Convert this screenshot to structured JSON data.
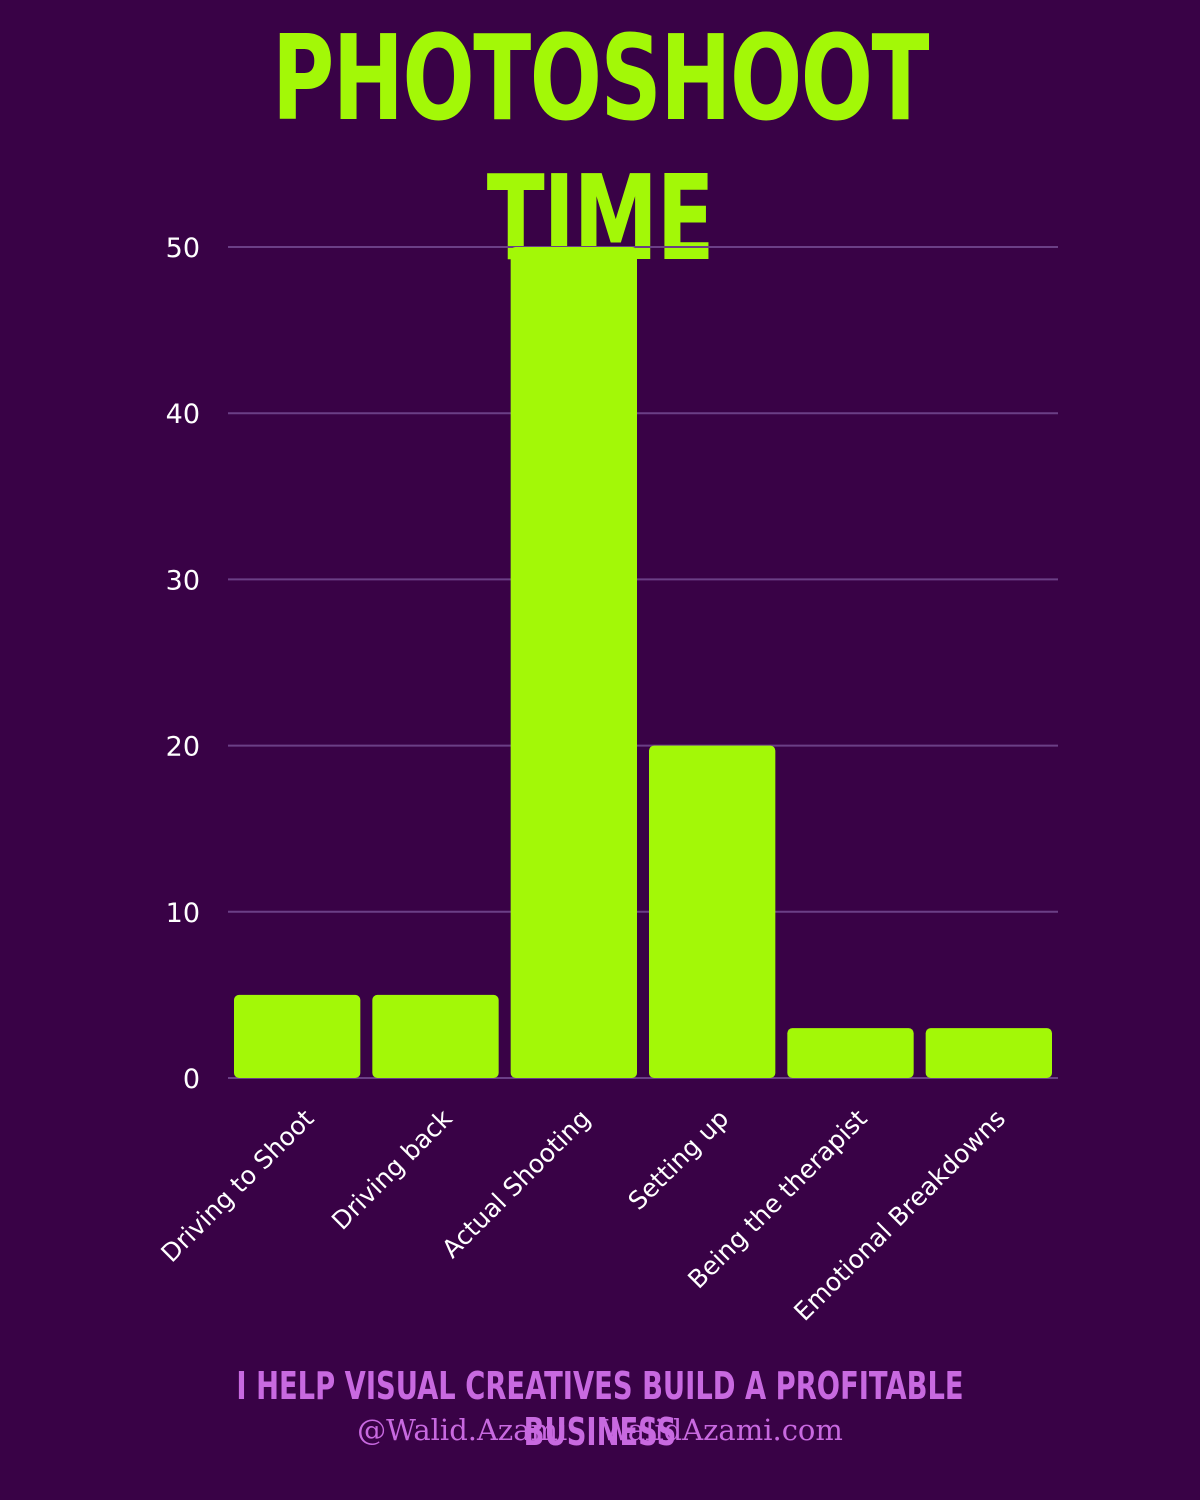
{
  "title": "PHOTOSHOOT TIME",
  "footer": {
    "tagline": "I HELP VISUAL CREATIVES BUILD A PROFITABLE BUSINESS",
    "handle": "@Walid.Azami",
    "website": "WalidAzami.com"
  },
  "colors": {
    "background": "#390246",
    "bar": "#a3f807",
    "title": "#a3f807",
    "footer_text": "#c869e0",
    "gridline": "#6b3f86",
    "tick_text": "#ffffff"
  },
  "chart_data": {
    "type": "bar",
    "categories": [
      "Driving to Shoot",
      "Driving back",
      "Actual Shooting",
      "Setting up",
      "Being the therapist",
      "Emotional Breakdowns"
    ],
    "values": [
      5,
      5,
      50,
      20,
      3,
      3
    ],
    "ylim": [
      0,
      50
    ],
    "yticks": [
      0,
      10,
      20,
      30,
      40,
      50
    ],
    "grid": true,
    "legend": "none"
  }
}
